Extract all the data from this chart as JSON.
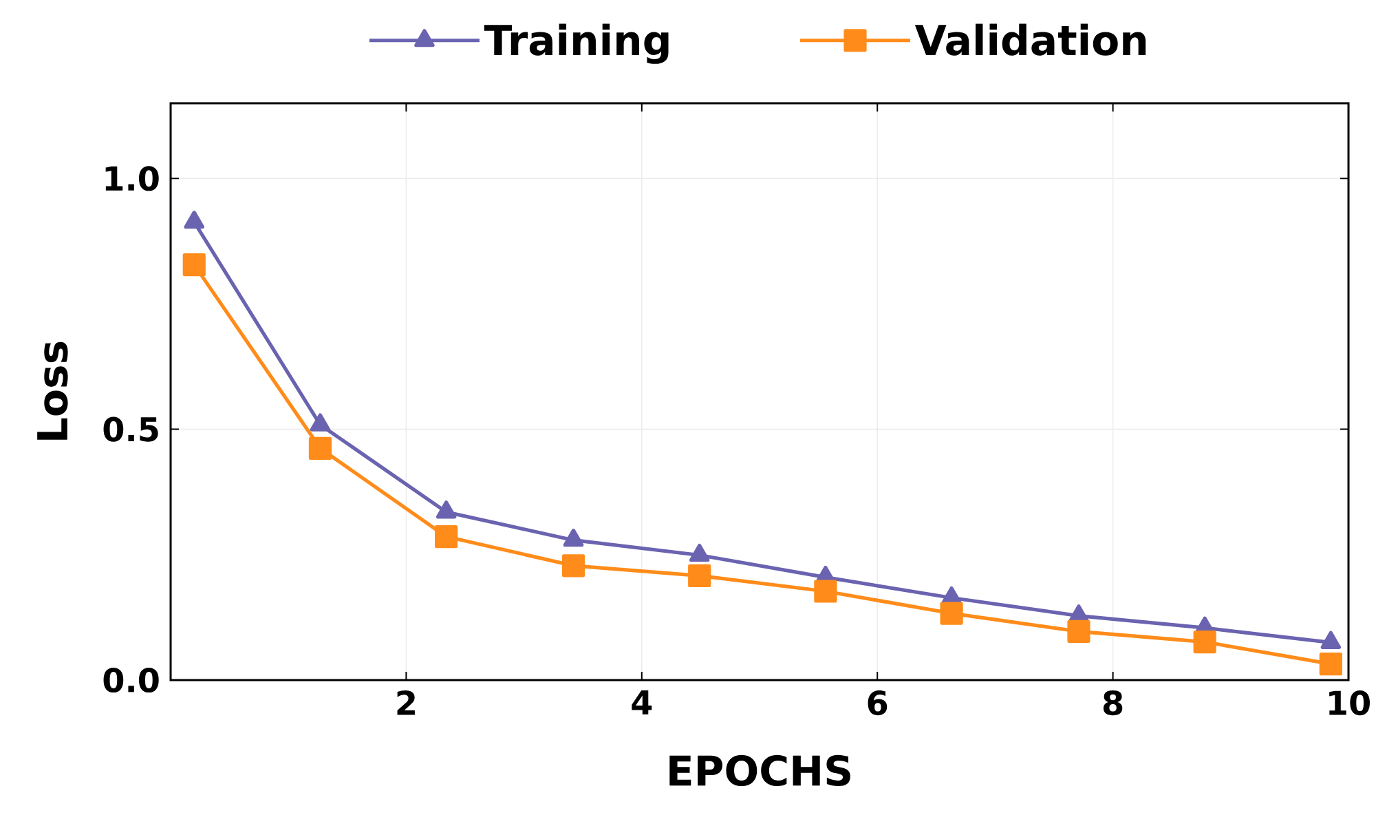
{
  "chart_data": {
    "type": "line",
    "xlabel": "EPOCHS",
    "ylabel": "Loss",
    "xlim": [
      0,
      10
    ],
    "ylim": [
      0,
      1.15
    ],
    "xticks": [
      2,
      4,
      6,
      8,
      10
    ],
    "yticks": [
      {
        "value": 0,
        "label": "0.0"
      },
      0.5,
      {
        "value": 1,
        "label": "1.0"
      }
    ],
    "x": [
      0.2,
      1.27,
      2.34,
      3.42,
      4.49,
      5.56,
      6.63,
      7.71,
      8.78,
      9.85
    ],
    "series": [
      {
        "name": "Training",
        "color": "#6a63b0",
        "marker": "triangle",
        "values": [
          0.913,
          0.509,
          0.335,
          0.279,
          0.249,
          0.205,
          0.164,
          0.128,
          0.104,
          0.075
        ]
      },
      {
        "name": "Validation",
        "color": "#ff8c1a",
        "marker": "square",
        "values": [
          0.828,
          0.462,
          0.286,
          0.228,
          0.208,
          0.177,
          0.133,
          0.097,
          0.076,
          0.032
        ]
      }
    ],
    "grid": true,
    "legend": "top",
    "line_style": "solid"
  }
}
